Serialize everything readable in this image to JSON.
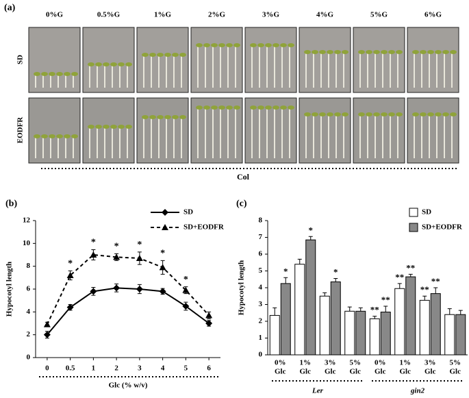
{
  "panel_a": {
    "label": "(a)",
    "columns": [
      "0%G",
      "0.5%G",
      "1%G",
      "2%G",
      "3%G",
      "4%G",
      "5%G",
      "6%G"
    ],
    "rows": [
      "SD",
      "EODFR"
    ],
    "genotype": "Col"
  },
  "chart_data": [
    {
      "type": "line",
      "panel": "(b)",
      "xlabel": "Glc (% w/v)",
      "ylabel": "Hypocotyl length",
      "categories": [
        "0",
        "0.5",
        "1",
        "2",
        "3",
        "4",
        "5",
        "6"
      ],
      "series": [
        {
          "name": "SD",
          "color": "#000000",
          "marker": "diamond",
          "linestyle": "solid",
          "values": [
            2.0,
            4.4,
            5.8,
            6.1,
            6.0,
            5.8,
            4.5,
            3.0
          ],
          "errors": [
            0.3,
            0.25,
            0.35,
            0.35,
            0.4,
            0.25,
            0.35,
            0.25
          ],
          "annotations": [
            null,
            null,
            null,
            null,
            null,
            null,
            null,
            null
          ]
        },
        {
          "name": "SD+EODFR",
          "color": "#000000",
          "marker": "triangle",
          "linestyle": "dashed",
          "values": [
            2.9,
            7.2,
            9.0,
            8.8,
            8.7,
            7.9,
            5.9,
            3.7
          ],
          "errors": [
            0.2,
            0.4,
            0.45,
            0.3,
            0.55,
            0.6,
            0.3,
            0.3
          ],
          "annotations": [
            null,
            "*",
            "*",
            "*",
            "*",
            "*",
            "*",
            null
          ]
        }
      ],
      "ylim": [
        0,
        12
      ],
      "yticks": [
        0,
        2,
        4,
        6,
        8,
        10,
        12
      ],
      "legend": "top-right"
    },
    {
      "type": "bar",
      "panel": "(c)",
      "ylabel": "Hypocotyl length",
      "categories": [
        [
          "0%",
          "Glc"
        ],
        [
          "1%",
          "Glc"
        ],
        [
          "3%",
          "Glc"
        ],
        [
          "5%",
          "Glc"
        ],
        [
          "0%",
          "Glc"
        ],
        [
          "1%",
          "Glc"
        ],
        [
          "3%",
          "Glc"
        ],
        [
          "5%",
          "Glc"
        ]
      ],
      "group_labels": [
        "Ler",
        "gin2"
      ],
      "series": [
        {
          "name": "SD",
          "color": "#ffffff",
          "values": [
            2.35,
            5.4,
            3.5,
            2.6,
            2.15,
            3.95,
            3.25,
            2.4
          ],
          "errors": [
            0.45,
            0.3,
            0.2,
            0.25,
            0.15,
            0.3,
            0.25,
            0.35
          ],
          "annotations": [
            null,
            null,
            null,
            null,
            "**",
            "**",
            "**",
            null
          ]
        },
        {
          "name": "SD+EODFR",
          "color": "#888888",
          "values": [
            4.25,
            6.85,
            4.35,
            2.6,
            2.55,
            4.65,
            3.65,
            2.4
          ],
          "errors": [
            0.35,
            0.2,
            0.2,
            0.2,
            0.35,
            0.15,
            0.35,
            0.25
          ],
          "annotations": [
            "*",
            "*",
            "*",
            null,
            "**",
            "**",
            "**",
            null
          ]
        }
      ],
      "ylim": [
        0,
        8
      ],
      "yticks": [
        0,
        1,
        2,
        3,
        4,
        5,
        6,
        7,
        8
      ],
      "legend": "top-right"
    }
  ]
}
